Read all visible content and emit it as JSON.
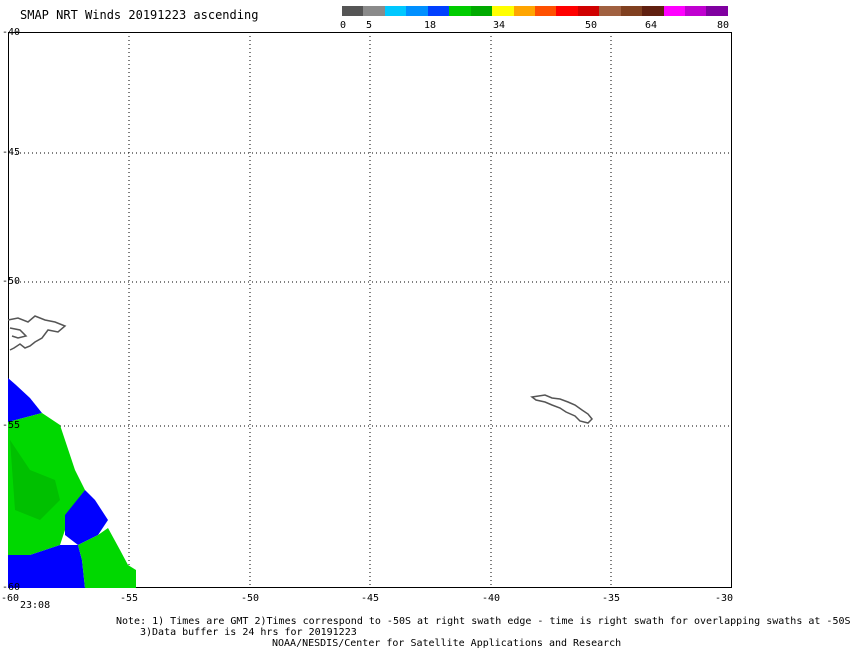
{
  "title": "SMAP NRT Winds 20191223 ascending",
  "colorbar": {
    "labels": [
      "0",
      "5",
      "18",
      "34",
      "50",
      "64",
      "80"
    ],
    "segments": [
      "#555555",
      "#8a8a8a",
      "#00c8ff",
      "#0090ff",
      "#0040ff",
      "#00cc00",
      "#00aa00",
      "#ffff00",
      "#ffa500",
      "#ff5000",
      "#ff0000",
      "#d00000",
      "#a06040",
      "#804020",
      "#602010",
      "#ff00ff",
      "#c000d0",
      "#8000a0"
    ]
  },
  "map": {
    "y_labels": [
      "-40",
      "-45",
      "-50",
      "-55",
      "-60"
    ],
    "x_labels": [
      "-60",
      "-55",
      "-50",
      "-45",
      "-40",
      "-35",
      "-30"
    ],
    "time_label": "23:08",
    "wind_colors": {
      "blue": "#0000ff",
      "green": "#00d800",
      "green_dark": "#00c000"
    }
  },
  "notes": {
    "line1": "Note: 1) Times are GMT 2)Times correspond to -50S at right swath edge - time is right swath for overlapping swaths at -50S",
    "line2": "3)Data buffer is 24 hrs for 20191223",
    "line3": "NOAA/NESDIS/Center for Satellite Applications and Research"
  }
}
